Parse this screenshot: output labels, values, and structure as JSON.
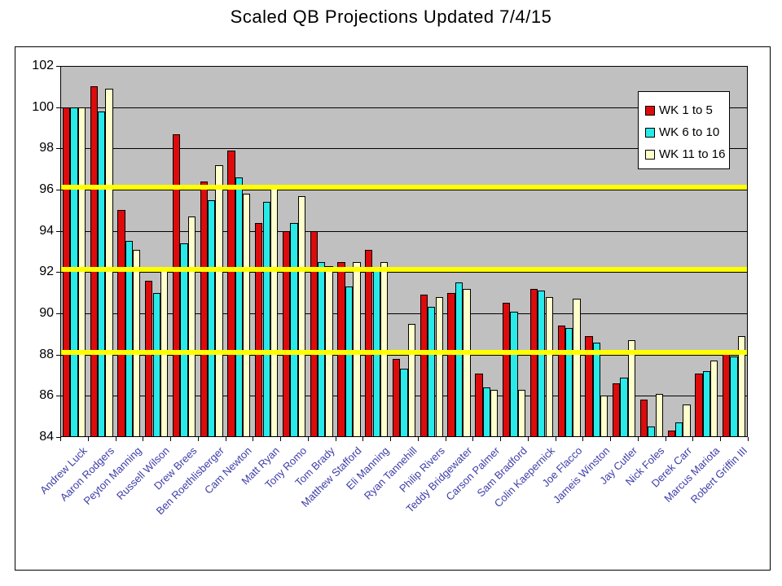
{
  "title": "Scaled QB Projections Updated 7/4/15",
  "chart_data": {
    "type": "bar",
    "title": "Scaled QB Projections Updated 7/4/15",
    "categories": [
      "Andrew Luck",
      "Aaron Rodgers",
      "Peyton Manning",
      "Russell Wilson",
      "Drew Brees",
      "Ben Roethlisberger",
      "Cam Newton",
      "Matt Ryan",
      "Tony Romo",
      "Tom Brady",
      "Matthew Stafford",
      "Eli Manning",
      "Ryan Tannehill",
      "Philip Rivers",
      "Teddy Bridgewater",
      "Carson Palmer",
      "Sam Bradford",
      "Colin Kaepernick",
      "Joe Flacco",
      "Jameis Winston",
      "Jay Cutler",
      "Nick Foles",
      "Derek Carr",
      "Marcus Mariota",
      "Robert Griffin III"
    ],
    "series": [
      {
        "name": "WK 1 to 5",
        "color": "#dd0b0b",
        "values": [
          100.0,
          101.0,
          95.0,
          91.6,
          98.7,
          96.4,
          97.9,
          94.4,
          94.0,
          94.0,
          92.5,
          93.1,
          87.8,
          90.9,
          91.0,
          87.1,
          90.5,
          91.2,
          89.4,
          88.9,
          86.6,
          85.8,
          84.3,
          87.1,
          88.2
        ]
      },
      {
        "name": "WK 6 to 10",
        "color": "#29e9e9",
        "values": [
          100.0,
          99.8,
          93.5,
          91.0,
          93.4,
          95.5,
          96.6,
          95.4,
          94.4,
          92.5,
          91.3,
          92.1,
          87.3,
          90.3,
          91.5,
          86.4,
          90.1,
          91.1,
          89.3,
          88.6,
          86.9,
          84.5,
          84.7,
          87.2,
          87.9
        ]
      },
      {
        "name": "WK 11 to 16",
        "color": "#ffffcc",
        "values": [
          100.0,
          100.9,
          93.1,
          92.2,
          94.7,
          97.2,
          95.8,
          96.1,
          95.7,
          92.3,
          92.5,
          92.5,
          89.5,
          90.8,
          91.2,
          86.3,
          86.3,
          90.8,
          90.7,
          86.0,
          88.7,
          86.1,
          85.6,
          87.7,
          88.9
        ]
      }
    ],
    "ylim": [
      84,
      102
    ],
    "ytick_step": 2,
    "yticks": [
      84,
      86,
      88,
      90,
      92,
      94,
      96,
      98,
      100,
      102
    ],
    "reference_lines": {
      "values": [
        88,
        92,
        96
      ],
      "color": "#ffff00"
    },
    "grid": true,
    "legend_position": "top-right",
    "plot_bg_color": "#c0c0c0",
    "xlabel_color": "#3d3daa"
  }
}
